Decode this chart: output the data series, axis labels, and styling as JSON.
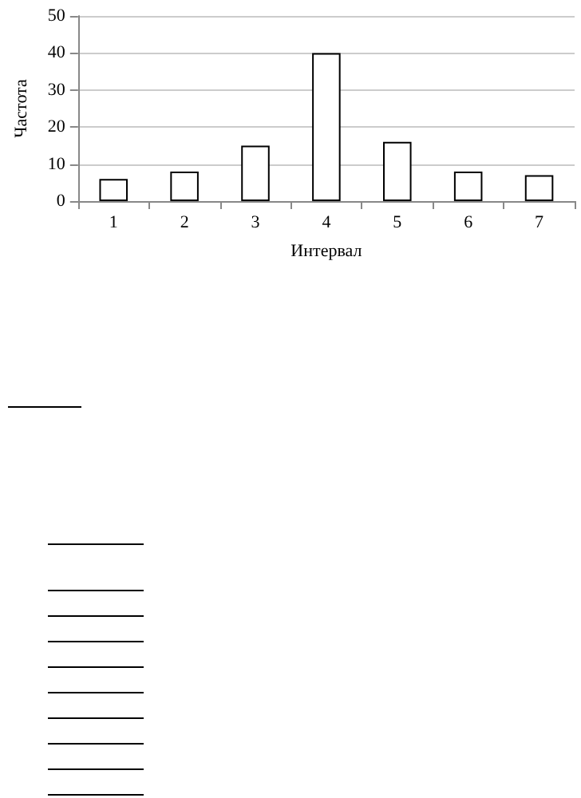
{
  "chart_data": {
    "type": "bar",
    "xlabel": "Интервал",
    "ylabel": "Частота",
    "categories": [
      "1",
      "2",
      "3",
      "4",
      "5",
      "6",
      "7"
    ],
    "values": [
      6,
      8,
      15,
      40,
      16,
      8,
      7
    ],
    "color": "#ffffff",
    "ylim": [
      0,
      50
    ],
    "yticks": [
      0,
      10,
      20,
      30,
      40,
      50
    ],
    "grid": "y"
  }
}
